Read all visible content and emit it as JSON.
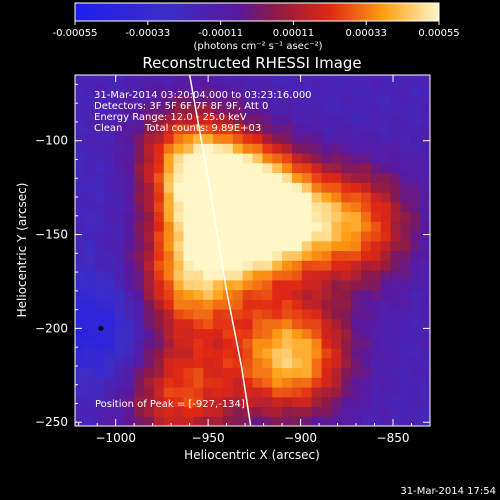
{
  "colorbar": {
    "ticks": [
      "-0.00055",
      "-0.00033",
      "-0.00011",
      "0.00011",
      "0.00033",
      "0.00055"
    ],
    "units": "(photons cm⁻² s⁻¹ asec⁻²)"
  },
  "chart_data": {
    "type": "heatmap",
    "title": "Reconstructed RHESSI Image",
    "xlabel": "Heliocentric X (arcsec)",
    "ylabel": "Heliocentric Y (arcsec)",
    "xlim": [
      -1022,
      -830
    ],
    "ylim": [
      -252,
      -65
    ],
    "xticks": [
      -1000,
      -950,
      -900,
      -850
    ],
    "yticks": [
      -100,
      -150,
      -200,
      -250
    ],
    "color_range": [
      -0.00055,
      0.00055
    ],
    "annotations": {
      "time_range": "31-Mar-2014 03:20:04.000 to 03:23:16.000",
      "detectors": "Detectors: 3F 5F 6F 7F 8F 9F, Att 0",
      "energy": "Energy Range: 12.0 - 25.0 keV",
      "clean": "Clean",
      "counts": "Total counts: 9.89E+03",
      "peak": "Position of Peak = [-927,-134]"
    },
    "peak_position": [
      -927,
      -134
    ],
    "limb_curve": [
      [
        -960,
        -65
      ],
      [
        -950,
        -120
      ],
      [
        -940,
        -180
      ],
      [
        -932,
        -220
      ],
      [
        -927,
        -252
      ]
    ],
    "regions": [
      {
        "x": -940,
        "y": -135,
        "intensity": 0.00055
      },
      {
        "x": -915,
        "y": -140,
        "intensity": 0.0005
      },
      {
        "x": -960,
        "y": -110,
        "intensity": 0.0003
      },
      {
        "x": -960,
        "y": -175,
        "intensity": 0.00035
      },
      {
        "x": -905,
        "y": -215,
        "intensity": 0.00045
      },
      {
        "x": -870,
        "y": -145,
        "intensity": 0.0003
      },
      {
        "x": -1008,
        "y": -200,
        "intensity": -0.00045
      },
      {
        "x": -1000,
        "y": -125,
        "intensity": -0.00025
      },
      {
        "x": -880,
        "y": -100,
        "intensity": -0.0002
      },
      {
        "x": -965,
        "y": -235,
        "intensity": 0.00025
      }
    ]
  },
  "footer": {
    "timestamp": "31-Mar-2014 17:54"
  }
}
